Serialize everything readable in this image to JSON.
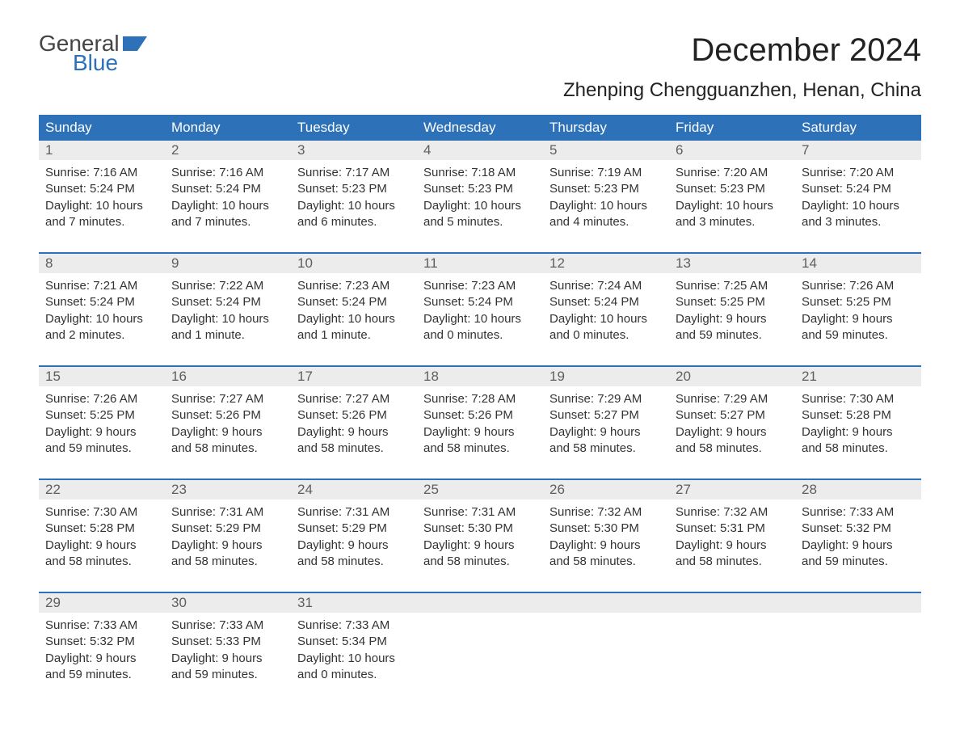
{
  "logo": {
    "text_general": "General",
    "text_blue": "Blue",
    "flag_color": "#2d71b8"
  },
  "title": "December 2024",
  "subtitle": "Zhenping Chengguanzhen, Henan, China",
  "colors": {
    "header_bg": "#2d71b8",
    "header_text": "#ffffff",
    "daynum_bg": "#ececec",
    "daynum_text": "#5e5e5e",
    "body_text": "#333333",
    "week_border": "#2d71b8",
    "page_bg": "#ffffff"
  },
  "typography": {
    "title_fontsize": 40,
    "subtitle_fontsize": 24,
    "weekday_fontsize": 17,
    "daynum_fontsize": 17,
    "body_fontsize": 15,
    "font_family": "Arial, Helvetica, sans-serif"
  },
  "layout": {
    "columns": 7,
    "rows": 5,
    "aspect_w": 1188,
    "aspect_h": 918
  },
  "weekdays": [
    "Sunday",
    "Monday",
    "Tuesday",
    "Wednesday",
    "Thursday",
    "Friday",
    "Saturday"
  ],
  "days": [
    {
      "n": "1",
      "sunrise": "Sunrise: 7:16 AM",
      "sunset": "Sunset: 5:24 PM",
      "dl1": "Daylight: 10 hours",
      "dl2": "and 7 minutes."
    },
    {
      "n": "2",
      "sunrise": "Sunrise: 7:16 AM",
      "sunset": "Sunset: 5:24 PM",
      "dl1": "Daylight: 10 hours",
      "dl2": "and 7 minutes."
    },
    {
      "n": "3",
      "sunrise": "Sunrise: 7:17 AM",
      "sunset": "Sunset: 5:23 PM",
      "dl1": "Daylight: 10 hours",
      "dl2": "and 6 minutes."
    },
    {
      "n": "4",
      "sunrise": "Sunrise: 7:18 AM",
      "sunset": "Sunset: 5:23 PM",
      "dl1": "Daylight: 10 hours",
      "dl2": "and 5 minutes."
    },
    {
      "n": "5",
      "sunrise": "Sunrise: 7:19 AM",
      "sunset": "Sunset: 5:23 PM",
      "dl1": "Daylight: 10 hours",
      "dl2": "and 4 minutes."
    },
    {
      "n": "6",
      "sunrise": "Sunrise: 7:20 AM",
      "sunset": "Sunset: 5:23 PM",
      "dl1": "Daylight: 10 hours",
      "dl2": "and 3 minutes."
    },
    {
      "n": "7",
      "sunrise": "Sunrise: 7:20 AM",
      "sunset": "Sunset: 5:24 PM",
      "dl1": "Daylight: 10 hours",
      "dl2": "and 3 minutes."
    },
    {
      "n": "8",
      "sunrise": "Sunrise: 7:21 AM",
      "sunset": "Sunset: 5:24 PM",
      "dl1": "Daylight: 10 hours",
      "dl2": "and 2 minutes."
    },
    {
      "n": "9",
      "sunrise": "Sunrise: 7:22 AM",
      "sunset": "Sunset: 5:24 PM",
      "dl1": "Daylight: 10 hours",
      "dl2": "and 1 minute."
    },
    {
      "n": "10",
      "sunrise": "Sunrise: 7:23 AM",
      "sunset": "Sunset: 5:24 PM",
      "dl1": "Daylight: 10 hours",
      "dl2": "and 1 minute."
    },
    {
      "n": "11",
      "sunrise": "Sunrise: 7:23 AM",
      "sunset": "Sunset: 5:24 PM",
      "dl1": "Daylight: 10 hours",
      "dl2": "and 0 minutes."
    },
    {
      "n": "12",
      "sunrise": "Sunrise: 7:24 AM",
      "sunset": "Sunset: 5:24 PM",
      "dl1": "Daylight: 10 hours",
      "dl2": "and 0 minutes."
    },
    {
      "n": "13",
      "sunrise": "Sunrise: 7:25 AM",
      "sunset": "Sunset: 5:25 PM",
      "dl1": "Daylight: 9 hours",
      "dl2": "and 59 minutes."
    },
    {
      "n": "14",
      "sunrise": "Sunrise: 7:26 AM",
      "sunset": "Sunset: 5:25 PM",
      "dl1": "Daylight: 9 hours",
      "dl2": "and 59 minutes."
    },
    {
      "n": "15",
      "sunrise": "Sunrise: 7:26 AM",
      "sunset": "Sunset: 5:25 PM",
      "dl1": "Daylight: 9 hours",
      "dl2": "and 59 minutes."
    },
    {
      "n": "16",
      "sunrise": "Sunrise: 7:27 AM",
      "sunset": "Sunset: 5:26 PM",
      "dl1": "Daylight: 9 hours",
      "dl2": "and 58 minutes."
    },
    {
      "n": "17",
      "sunrise": "Sunrise: 7:27 AM",
      "sunset": "Sunset: 5:26 PM",
      "dl1": "Daylight: 9 hours",
      "dl2": "and 58 minutes."
    },
    {
      "n": "18",
      "sunrise": "Sunrise: 7:28 AM",
      "sunset": "Sunset: 5:26 PM",
      "dl1": "Daylight: 9 hours",
      "dl2": "and 58 minutes."
    },
    {
      "n": "19",
      "sunrise": "Sunrise: 7:29 AM",
      "sunset": "Sunset: 5:27 PM",
      "dl1": "Daylight: 9 hours",
      "dl2": "and 58 minutes."
    },
    {
      "n": "20",
      "sunrise": "Sunrise: 7:29 AM",
      "sunset": "Sunset: 5:27 PM",
      "dl1": "Daylight: 9 hours",
      "dl2": "and 58 minutes."
    },
    {
      "n": "21",
      "sunrise": "Sunrise: 7:30 AM",
      "sunset": "Sunset: 5:28 PM",
      "dl1": "Daylight: 9 hours",
      "dl2": "and 58 minutes."
    },
    {
      "n": "22",
      "sunrise": "Sunrise: 7:30 AM",
      "sunset": "Sunset: 5:28 PM",
      "dl1": "Daylight: 9 hours",
      "dl2": "and 58 minutes."
    },
    {
      "n": "23",
      "sunrise": "Sunrise: 7:31 AM",
      "sunset": "Sunset: 5:29 PM",
      "dl1": "Daylight: 9 hours",
      "dl2": "and 58 minutes."
    },
    {
      "n": "24",
      "sunrise": "Sunrise: 7:31 AM",
      "sunset": "Sunset: 5:29 PM",
      "dl1": "Daylight: 9 hours",
      "dl2": "and 58 minutes."
    },
    {
      "n": "25",
      "sunrise": "Sunrise: 7:31 AM",
      "sunset": "Sunset: 5:30 PM",
      "dl1": "Daylight: 9 hours",
      "dl2": "and 58 minutes."
    },
    {
      "n": "26",
      "sunrise": "Sunrise: 7:32 AM",
      "sunset": "Sunset: 5:30 PM",
      "dl1": "Daylight: 9 hours",
      "dl2": "and 58 minutes."
    },
    {
      "n": "27",
      "sunrise": "Sunrise: 7:32 AM",
      "sunset": "Sunset: 5:31 PM",
      "dl1": "Daylight: 9 hours",
      "dl2": "and 58 minutes."
    },
    {
      "n": "28",
      "sunrise": "Sunrise: 7:33 AM",
      "sunset": "Sunset: 5:32 PM",
      "dl1": "Daylight: 9 hours",
      "dl2": "and 59 minutes."
    },
    {
      "n": "29",
      "sunrise": "Sunrise: 7:33 AM",
      "sunset": "Sunset: 5:32 PM",
      "dl1": "Daylight: 9 hours",
      "dl2": "and 59 minutes."
    },
    {
      "n": "30",
      "sunrise": "Sunrise: 7:33 AM",
      "sunset": "Sunset: 5:33 PM",
      "dl1": "Daylight: 9 hours",
      "dl2": "and 59 minutes."
    },
    {
      "n": "31",
      "sunrise": "Sunrise: 7:33 AM",
      "sunset": "Sunset: 5:34 PM",
      "dl1": "Daylight: 10 hours",
      "dl2": "and 0 minutes."
    }
  ]
}
